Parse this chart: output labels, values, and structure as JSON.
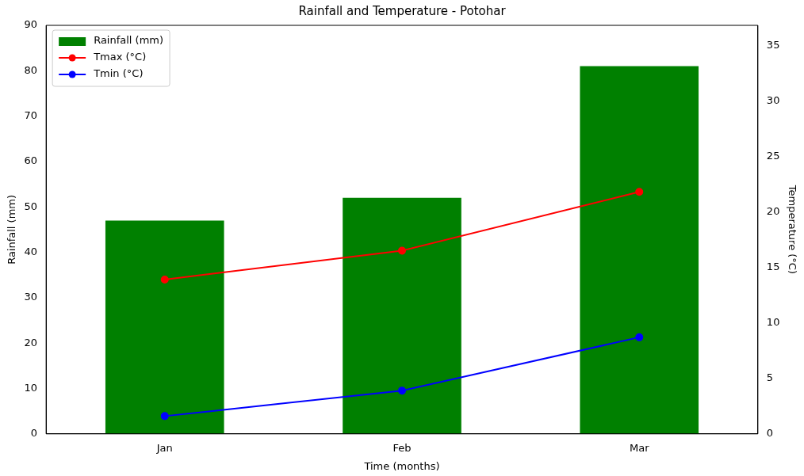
{
  "chart_data": {
    "type": "bar",
    "title": "Rainfall and Temperature - Potohar",
    "xlabel": "Time (months)",
    "ylabel": "Rainfall (mm)",
    "y2label": "Temperature (°C)",
    "categories": [
      "Jan",
      "Feb",
      "Mar"
    ],
    "series": [
      {
        "name": "Rainfall (mm)",
        "color": "#008000",
        "values": [
          47,
          52,
          81
        ]
      },
      {
        "name": "Tmax (°C)",
        "type": "line",
        "axis": "y2",
        "color": "#ff0000",
        "values": [
          13.9,
          16.5,
          21.8
        ]
      },
      {
        "name": "Tmin (°C)",
        "type": "line",
        "axis": "y2",
        "color": "#0000ff",
        "values": [
          1.6,
          3.9,
          8.7
        ]
      }
    ],
    "ylim": [
      0,
      90
    ],
    "yticks": [
      0,
      10,
      20,
      30,
      40,
      50,
      60,
      70,
      80,
      90
    ],
    "y2lim": [
      0,
      36.8
    ],
    "y2ticks": [
      0,
      5,
      10,
      15,
      20,
      25,
      30,
      35
    ],
    "grid": false,
    "legend": "top left",
    "marker": "circle",
    "line_style": "solid"
  }
}
